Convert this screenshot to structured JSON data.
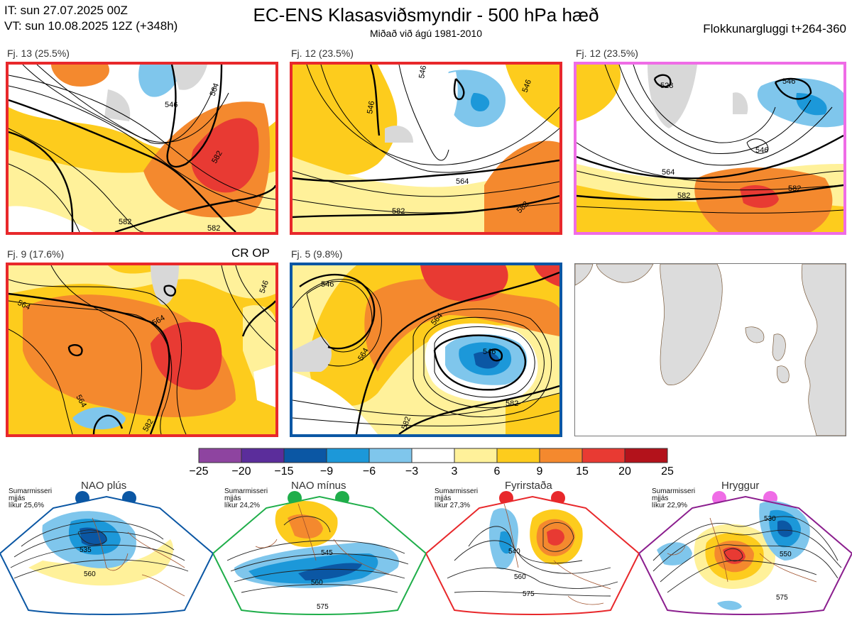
{
  "header": {
    "it_line": "IT: sun 27.07.2025 00Z",
    "vt_line": "VT: sun 10.08.2025 12Z  (+348h)",
    "title": "EC-ENS Klasasviðsmyndir - 500 hPa hæð",
    "subtitle": "Miðað við ágú 1981-2010",
    "window": "Flokkunargluggi t+264-360"
  },
  "panels": [
    {
      "label": "Fj. 13 (25.5%)",
      "border": "#e8282b",
      "contours": [
        "546",
        "564",
        "582",
        "582",
        "582"
      ]
    },
    {
      "label": "Fj. 12 (23.5%)",
      "border": "#e8282b",
      "contours": [
        "546",
        "546",
        "546",
        "564",
        "582",
        "582"
      ]
    },
    {
      "label": "Fj. 12 (23.5%)",
      "border": "#ef6ce6",
      "contours": [
        "528",
        "546",
        "546",
        "564",
        "582",
        "582"
      ]
    },
    {
      "label": "Fj. 9 (17.6%)",
      "border": "#e8282b",
      "tag": "CR OP",
      "contours": [
        "564",
        "564",
        "564",
        "582",
        "546"
      ]
    },
    {
      "label": "Fj. 5 (9.8%)",
      "border": "#0b57a4",
      "contours": [
        "546",
        "564",
        "564",
        "546",
        "582",
        "582"
      ]
    }
  ],
  "colorbar": {
    "ticks": [
      "−25",
      "−20",
      "−15",
      "−9",
      "−6",
      "−3",
      "3",
      "6",
      "9",
      "15",
      "20",
      "25"
    ],
    "colors": [
      "#8e44a0",
      "#5b2d9b",
      "#0b57a4",
      "#1c98d9",
      "#7fc6ec",
      "#ffffff",
      "#fff19a",
      "#fdcc1d",
      "#f4892e",
      "#e83a33",
      "#b3121b"
    ]
  },
  "regimes": [
    {
      "name": "NAO plús",
      "note": "Sumarmisseri\nmjjás\nlíkur 25,6%",
      "dot_color": "#0b57a4",
      "frame": "#0b57a4",
      "contours": [
        "535",
        "560"
      ]
    },
    {
      "name": "NAO mínus",
      "note": "Sumarmisseri\nmjjás\nlíkur 24,2%",
      "dot_color": "#1fae4a",
      "frame": "#1fae4a",
      "contours": [
        "545",
        "560",
        "575"
      ]
    },
    {
      "name": "Fyrirstaða",
      "note": "Sumarmisseri\nmjjás\nlíkur 27,3%",
      "dot_color": "#e8282b",
      "frame": "#e8282b",
      "contours": [
        "540",
        "560",
        "575"
      ]
    },
    {
      "name": "Hryggur",
      "note": "Sumarmisseri\nmjjás\nlíkur 22,9%",
      "dot_color": "#ef6ce6",
      "frame": "#8b1e8e",
      "contours": [
        "530",
        "550",
        "575"
      ]
    }
  ]
}
